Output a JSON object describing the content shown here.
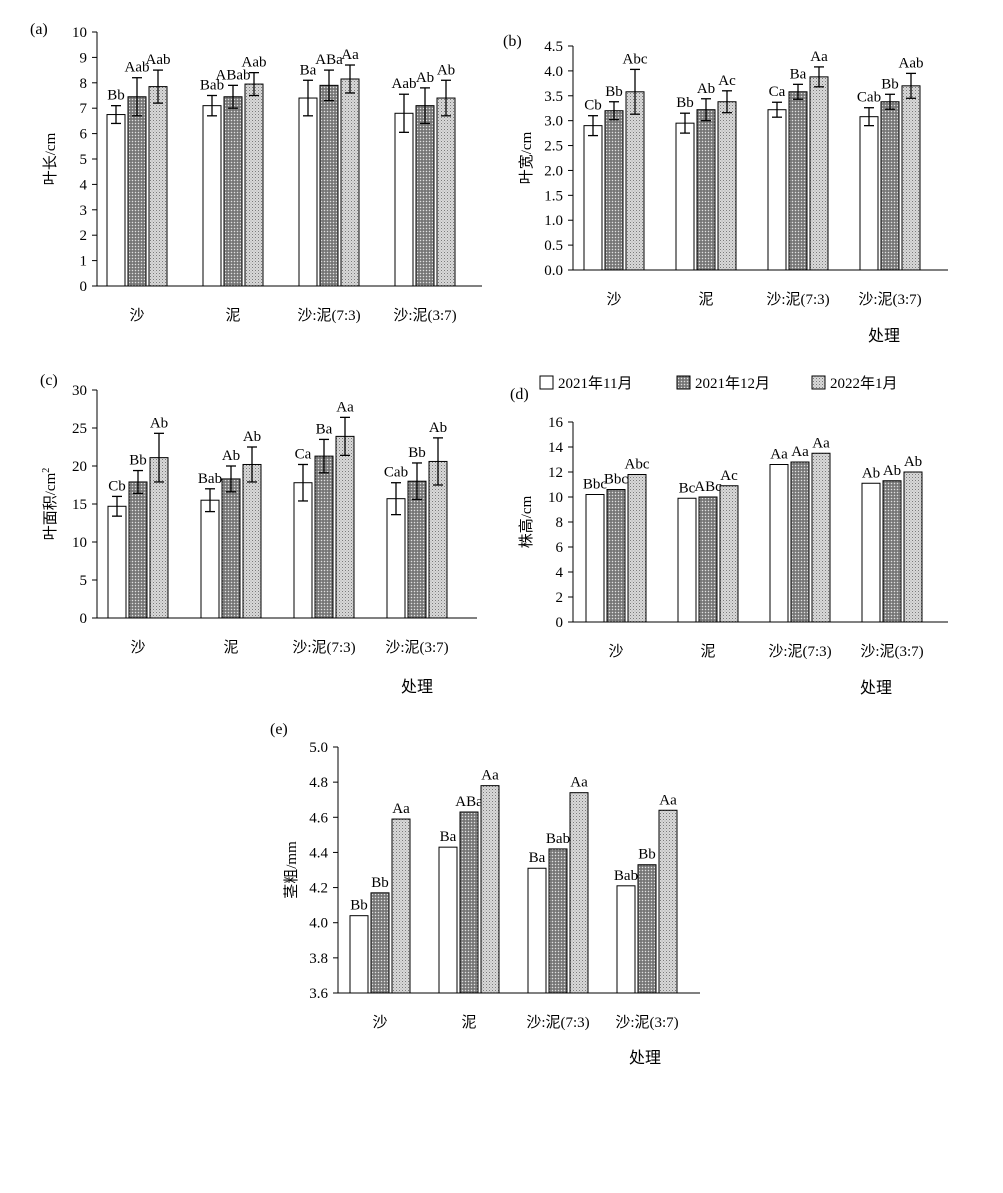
{
  "legend": {
    "entries": [
      "2021年11月",
      "2021年12月",
      "2022年1月"
    ]
  },
  "chart_data": [
    {
      "type": "bar",
      "panel_label": "(a)",
      "categories": [
        "沙",
        "泥",
        "沙:泥(7:3)",
        "沙:泥(3:7)"
      ],
      "ylabel": "叶长/cm",
      "xlabel": "",
      "ylim": [
        0,
        10
      ],
      "yticks": [
        "0",
        "1",
        "2",
        "3",
        "4",
        "5",
        "6",
        "7",
        "8",
        "9",
        "10"
      ],
      "series": [
        {
          "name": "2021年11月",
          "values": [
            6.75,
            7.1,
            7.4,
            6.8
          ],
          "errors": [
            0.35,
            0.4,
            0.7,
            0.75
          ],
          "labels": [
            "Bb",
            "Bab",
            "Ba",
            "Aab"
          ]
        },
        {
          "name": "2021年12月",
          "values": [
            7.45,
            7.45,
            7.9,
            7.1
          ],
          "errors": [
            0.75,
            0.45,
            0.6,
            0.7
          ],
          "labels": [
            "Aab",
            "ABab",
            "ABa",
            "Ab"
          ]
        },
        {
          "name": "2022年1月",
          "values": [
            7.85,
            7.95,
            8.15,
            7.4
          ],
          "errors": [
            0.65,
            0.45,
            0.55,
            0.7
          ],
          "labels": [
            "Aab",
            "Aab",
            "Aa",
            "Ab"
          ]
        }
      ]
    },
    {
      "type": "bar",
      "panel_label": "(b)",
      "categories": [
        "沙",
        "泥",
        "沙:泥(7:3)",
        "沙:泥(3:7)"
      ],
      "ylabel": "叶宽/cm",
      "xlabel": "处理",
      "ylim": [
        0,
        4.5
      ],
      "yticks": [
        "0.0",
        "0.5",
        "1.0",
        "1.5",
        "2.0",
        "2.5",
        "3.0",
        "3.5",
        "4.0",
        "4.5"
      ],
      "series": [
        {
          "name": "2021年11月",
          "values": [
            2.9,
            2.95,
            3.22,
            3.08
          ],
          "errors": [
            0.2,
            0.2,
            0.15,
            0.18
          ],
          "labels": [
            "Cb",
            "Bb",
            "Ca",
            "Cab"
          ]
        },
        {
          "name": "2021年12月",
          "values": [
            3.2,
            3.22,
            3.58,
            3.38
          ],
          "errors": [
            0.18,
            0.22,
            0.15,
            0.15
          ],
          "labels": [
            "Bb",
            "Ab",
            "Ba",
            "Bb"
          ]
        },
        {
          "name": "2022年1月",
          "values": [
            3.58,
            3.38,
            3.88,
            3.7
          ],
          "errors": [
            0.45,
            0.22,
            0.2,
            0.25
          ],
          "labels": [
            "Abc",
            "Ac",
            "Aa",
            "Aab"
          ]
        }
      ]
    },
    {
      "type": "bar",
      "panel_label": "(c)",
      "categories": [
        "沙",
        "泥",
        "沙:泥(7:3)",
        "沙:泥(3:7)"
      ],
      "ylabel": "叶面积/cm²",
      "xlabel": "处理",
      "ylim": [
        0,
        30
      ],
      "yticks": [
        "0",
        "5",
        "10",
        "15",
        "20",
        "25",
        "30"
      ],
      "series": [
        {
          "name": "2021年11月",
          "values": [
            14.7,
            15.5,
            17.8,
            15.7
          ],
          "errors": [
            1.3,
            1.5,
            2.4,
            2.1
          ],
          "labels": [
            "Cb",
            "Bab",
            "Ca",
            "Cab"
          ]
        },
        {
          "name": "2021年12月",
          "values": [
            17.9,
            18.3,
            21.3,
            18.0
          ],
          "errors": [
            1.5,
            1.7,
            2.2,
            2.4
          ],
          "labels": [
            "Bb",
            "Ab",
            "Ba",
            "Bb"
          ]
        },
        {
          "name": "2022年1月",
          "values": [
            21.1,
            20.2,
            23.9,
            20.6
          ],
          "errors": [
            3.2,
            2.3,
            2.5,
            3.1
          ],
          "labels": [
            "Ab",
            "Ab",
            "Aa",
            "Ab"
          ]
        }
      ]
    },
    {
      "type": "bar",
      "panel_label": "(d)",
      "categories": [
        "沙",
        "泥",
        "沙:泥(7:3)",
        "沙:泥(3:7)"
      ],
      "ylabel": "株高/cm",
      "xlabel": "处理",
      "ylim": [
        0,
        16
      ],
      "yticks": [
        "0",
        "2",
        "4",
        "6",
        "8",
        "10",
        "12",
        "14",
        "16"
      ],
      "series": [
        {
          "name": "2021年11月",
          "values": [
            10.2,
            9.9,
            12.6,
            11.1
          ],
          "labels": [
            "Bbc",
            "Bc",
            "Aa",
            "Ab"
          ]
        },
        {
          "name": "2021年12月",
          "values": [
            10.6,
            10.0,
            12.8,
            11.3
          ],
          "labels": [
            "Bbc",
            "ABc",
            "Aa",
            "Ab"
          ]
        },
        {
          "name": "2022年1月",
          "values": [
            11.8,
            10.9,
            13.5,
            12.0
          ],
          "labels": [
            "Abc",
            "Ac",
            "Aa",
            "Ab"
          ]
        }
      ]
    },
    {
      "type": "bar",
      "panel_label": "(e)",
      "categories": [
        "沙",
        "泥",
        "沙:泥(7:3)",
        "沙:泥(3:7)"
      ],
      "ylabel": "茎粗/mm",
      "xlabel": "处理",
      "ylim": [
        3.6,
        5.0
      ],
      "yticks": [
        "3.6",
        "3.8",
        "4.0",
        "4.2",
        "4.4",
        "4.6",
        "4.8",
        "5.0"
      ],
      "series": [
        {
          "name": "2021年11月",
          "values": [
            4.04,
            4.43,
            4.31,
            4.21
          ],
          "labels": [
            "Bb",
            "Ba",
            "Ba",
            "Bab"
          ]
        },
        {
          "name": "2021年12月",
          "values": [
            4.17,
            4.63,
            4.42,
            4.33
          ],
          "labels": [
            "Bb",
            "ABa",
            "Bab",
            "Bb"
          ]
        },
        {
          "name": "2022年1月",
          "values": [
            4.59,
            4.78,
            4.74,
            4.64
          ],
          "labels": [
            "Aa",
            "Aa",
            "Aa",
            "Aa"
          ]
        }
      ]
    }
  ]
}
